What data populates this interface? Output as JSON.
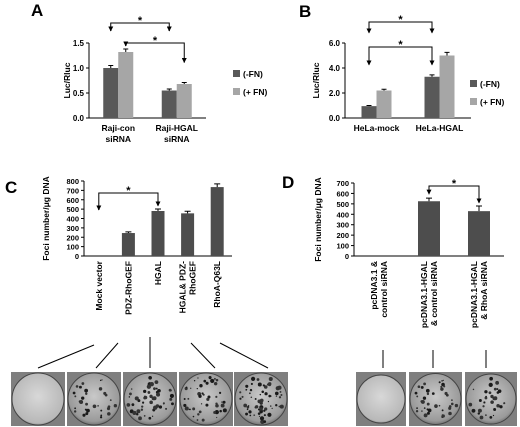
{
  "figure": {
    "panel_letters": [
      "A",
      "B",
      "C",
      "D"
    ],
    "significance_marker": "*"
  },
  "chart_data": [
    {
      "panel": "A",
      "type": "bar",
      "categories": [
        "Raji-con siRNA",
        "Raji-HGAL siRNA"
      ],
      "category_lines": [
        [
          "Raji-con",
          "siRNA"
        ],
        [
          "Raji-HGAL",
          "siRNA"
        ]
      ],
      "series": [
        {
          "name": "(-FN)",
          "color": "#595959",
          "values": [
            1.0,
            0.55
          ],
          "errors": [
            0.05,
            0.03
          ]
        },
        {
          "name": "(+ FN)",
          "color": "#a6a6a6",
          "values": [
            1.32,
            0.68
          ],
          "errors": [
            0.06,
            0.03
          ]
        }
      ],
      "ylabel": "Luc/Rluc",
      "ylim": [
        0,
        1.5
      ],
      "yticks": [
        "0.0",
        "0.5",
        "1.0",
        "1.5"
      ],
      "legend": "right",
      "grid": false,
      "annotations": [
        "*",
        "*"
      ]
    },
    {
      "panel": "B",
      "type": "bar",
      "categories": [
        "HeLa-mock",
        "HeLa-HGAL"
      ],
      "category_lines": [
        [
          "HeLa-mock"
        ],
        [
          "HeLa-HGAL"
        ]
      ],
      "series": [
        {
          "name": "(-FN)",
          "color": "#595959",
          "values": [
            0.95,
            3.3
          ],
          "errors": [
            0.05,
            0.15
          ]
        },
        {
          "name": "(+ FN)",
          "color": "#a6a6a6",
          "values": [
            2.2,
            5.0
          ],
          "errors": [
            0.1,
            0.25
          ]
        }
      ],
      "ylabel": "Luc/Rluc",
      "ylim": [
        0,
        6
      ],
      "yticks": [
        "0.0",
        "2.0",
        "4.0",
        "6.0"
      ],
      "legend": "right",
      "grid": false,
      "annotations": [
        "*",
        "*"
      ]
    },
    {
      "panel": "C",
      "type": "bar",
      "categories": [
        "Mock vector",
        "PDZ-RhoGEF",
        "HGAL",
        "HGAL& PDZ-RhoGEF",
        "RhoA-Q63L"
      ],
      "category_lines": [
        [
          "Mock vector"
        ],
        [
          "PDZ-RhoGEF"
        ],
        [
          "HGAL"
        ],
        [
          "HGAL& PDZ-",
          "RhoGEF"
        ],
        [
          "RhoA-Q63L"
        ]
      ],
      "series": [
        {
          "name": "",
          "color": "#4d4d4d",
          "values": [
            0,
            245,
            480,
            455,
            735
          ],
          "errors": [
            0,
            12,
            22,
            22,
            35
          ]
        }
      ],
      "ylabel": "Foci number/μg DNA",
      "ylim": [
        0,
        800
      ],
      "yticks": [
        "0",
        "100",
        "200",
        "300",
        "400",
        "500",
        "600",
        "700",
        "800"
      ],
      "grid": false,
      "annotations": [
        "*"
      ]
    },
    {
      "panel": "D",
      "type": "bar",
      "categories": [
        "pcDNA3.1 & control siRNA",
        "pcDNA3.1-HGAL & control siRNA",
        "pcDNA3.1-HGAL & RhoA siRNA"
      ],
      "category_lines": [
        [
          "pcDNA3.1 &",
          "control siRNA"
        ],
        [
          "pcDNA3.1-HGAL",
          "& control siRNA"
        ],
        [
          "pcDNA3.1-HGAL",
          "& RhoA siRNA"
        ]
      ],
      "series": [
        {
          "name": "",
          "color": "#4d4d4d",
          "values": [
            0,
            525,
            430
          ],
          "errors": [
            0,
            30,
            50
          ]
        }
      ],
      "ylabel": "Foci number/μg DNA",
      "ylim": [
        0,
        700
      ],
      "yticks": [
        "0",
        "100",
        "200",
        "300",
        "400",
        "500",
        "600",
        "700"
      ],
      "grid": false,
      "annotations": [
        "*"
      ]
    }
  ],
  "dishes": {
    "C": [
      {
        "density": 0.0
      },
      {
        "density": 0.45
      },
      {
        "density": 0.7
      },
      {
        "density": 0.65
      },
      {
        "density": 0.95
      }
    ],
    "D": [
      {
        "density": 0.0
      },
      {
        "density": 0.6
      },
      {
        "density": 0.45
      }
    ]
  }
}
